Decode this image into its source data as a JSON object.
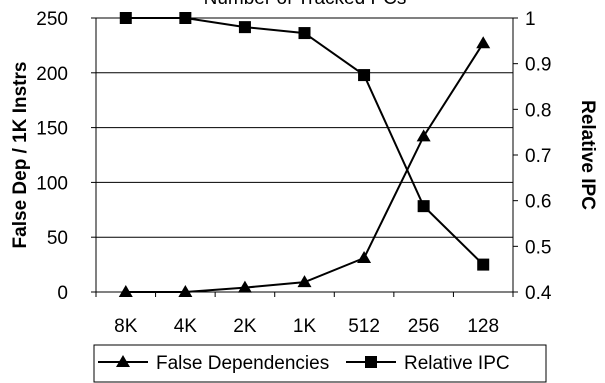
{
  "chart_data": {
    "type": "line",
    "title": "Number of Tracked PCs",
    "categories": [
      "8K",
      "4K",
      "2K",
      "1K",
      "512",
      "256",
      "128"
    ],
    "left_axis": {
      "label": "False Dep / 1K Instrs",
      "ylim": [
        0,
        250
      ],
      "ticks": [
        "0",
        "50",
        "100",
        "150",
        "200",
        "250"
      ]
    },
    "right_axis": {
      "label": "Relative IPC",
      "ylim": [
        0.4,
        1
      ],
      "ticks": [
        "0.4",
        "0.5",
        "0.6",
        "0.7",
        "0.8",
        "0.9",
        "1"
      ]
    },
    "grid": true,
    "legend_position": "bottom",
    "series": [
      {
        "name": "False Dependencies",
        "axis": "left",
        "marker": "triangle",
        "color": "#000000",
        "values": [
          0,
          0,
          4,
          9,
          31,
          142,
          227
        ]
      },
      {
        "name": "Relative IPC",
        "axis": "right",
        "marker": "square",
        "color": "#000000",
        "values": [
          1.0,
          1.0,
          0.98,
          0.967,
          0.875,
          0.588,
          0.46
        ]
      }
    ]
  }
}
